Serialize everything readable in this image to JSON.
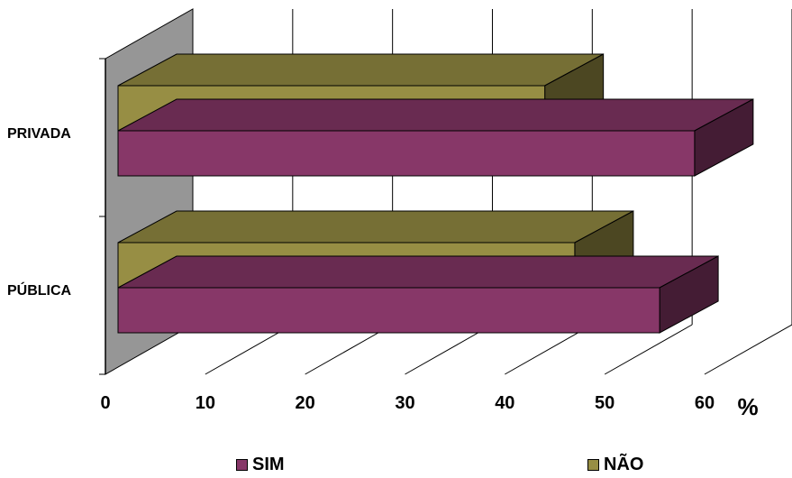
{
  "chart_data": {
    "type": "bar",
    "orientation": "horizontal",
    "three_d": true,
    "categories": [
      "PRIVADA",
      "PÚBLICA"
    ],
    "series": [
      {
        "name": "SIM",
        "values": [
          59,
          55.5
        ],
        "color": "#873768"
      },
      {
        "name": "NÃO",
        "values": [
          44,
          47
        ],
        "color": "#978E44"
      }
    ],
    "x_ticks": [
      "0",
      "10",
      "20",
      "30",
      "40",
      "50",
      "60"
    ],
    "xlim": [
      0,
      60
    ],
    "unit_label": "%",
    "grid": true,
    "legend_position": "bottom"
  }
}
